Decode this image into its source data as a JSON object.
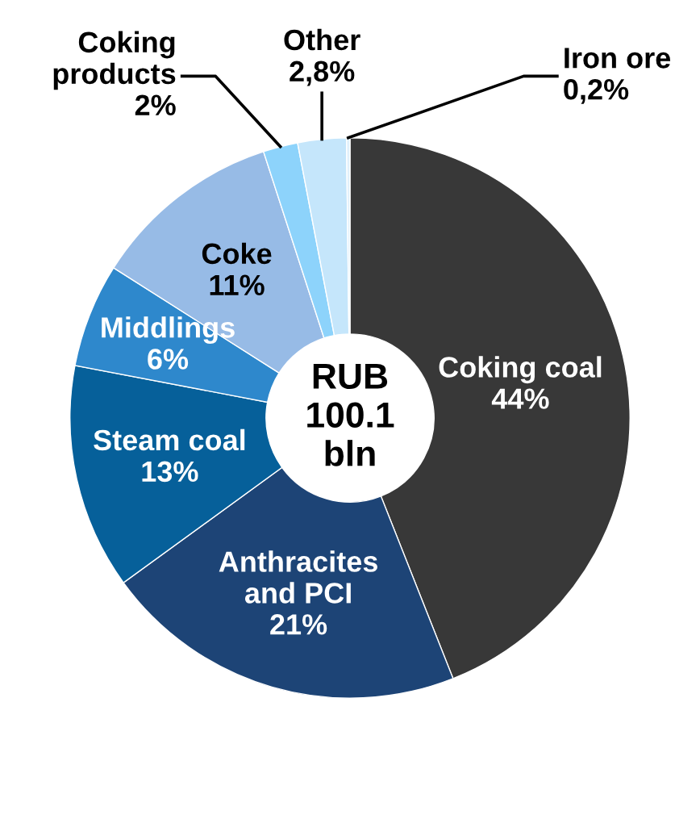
{
  "chart_data": {
    "type": "donut",
    "categories": [
      "Coking coal",
      "Anthracites\nand PCI",
      "Steam coal",
      "Middlings",
      "Coke",
      "Coking\nproducts",
      "Other",
      "Iron ore"
    ],
    "values": [
      44,
      21,
      13,
      6,
      11,
      2,
      2.8,
      0.2
    ],
    "value_labels": [
      "44%",
      "21%",
      "13%",
      "6%",
      "11%",
      "2%",
      "2,8%",
      "0,2%"
    ],
    "colors": [
      "#383838",
      "#1d4476",
      "#06609a",
      "#2e88cc",
      "#97bbe6",
      "#8dd3fb",
      "#c5e6fb",
      "#e0f0fb"
    ],
    "annotations": [
      "RUB\n100.1\nbln"
    ]
  }
}
